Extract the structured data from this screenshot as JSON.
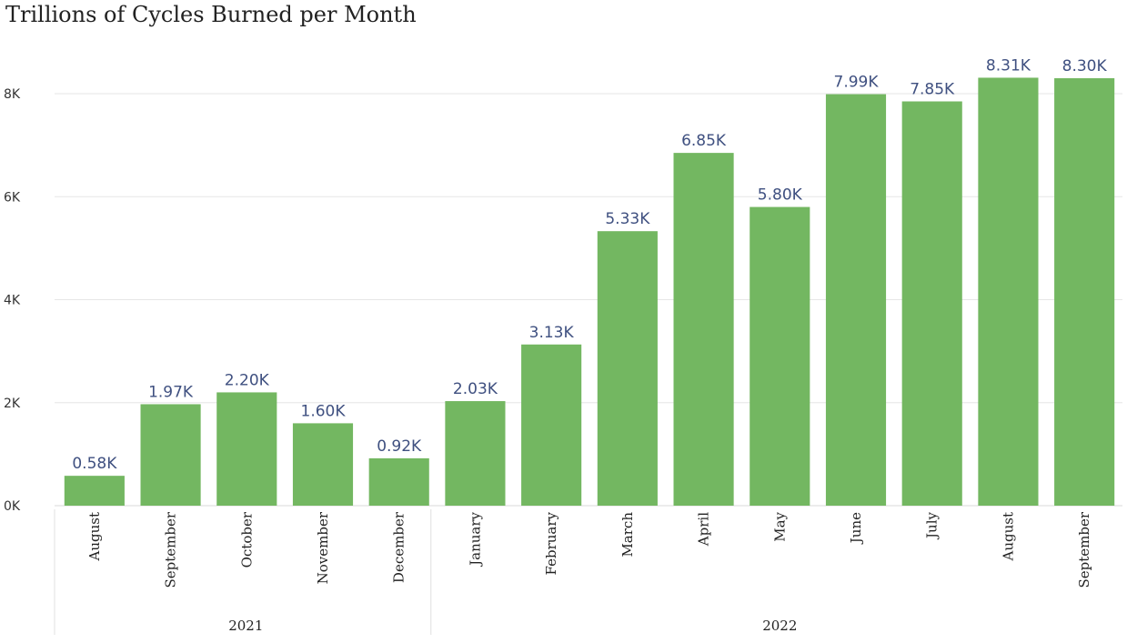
{
  "chart_data": {
    "type": "bar",
    "title": "Trillions of Cycles Burned per Month",
    "xlabel": "",
    "ylabel": "",
    "ylim": [
      0,
      8500
    ],
    "yticks": [
      0,
      2000,
      4000,
      6000,
      8000
    ],
    "ytick_labels": [
      "0K",
      "2K",
      "4K",
      "6K",
      "8K"
    ],
    "categories": [
      "August",
      "September",
      "October",
      "November",
      "December",
      "January",
      "February",
      "March",
      "April",
      "May",
      "June",
      "July",
      "August",
      "September"
    ],
    "years": [
      {
        "label": "2021",
        "count": 5
      },
      {
        "label": "2022",
        "count": 9
      }
    ],
    "values": [
      580,
      1970,
      2200,
      1600,
      920,
      2030,
      3130,
      5330,
      6850,
      5800,
      7990,
      7850,
      8310,
      8300
    ],
    "data_labels": [
      "0.58K",
      "1.97K",
      "2.20K",
      "1.60K",
      "0.92K",
      "2.03K",
      "3.13K",
      "5.33K",
      "6.85K",
      "5.80K",
      "7.99K",
      "7.85K",
      "8.31K",
      "8.30K"
    ],
    "grid": true,
    "bar_color": "#73b761",
    "label_color": "#3f5080"
  }
}
